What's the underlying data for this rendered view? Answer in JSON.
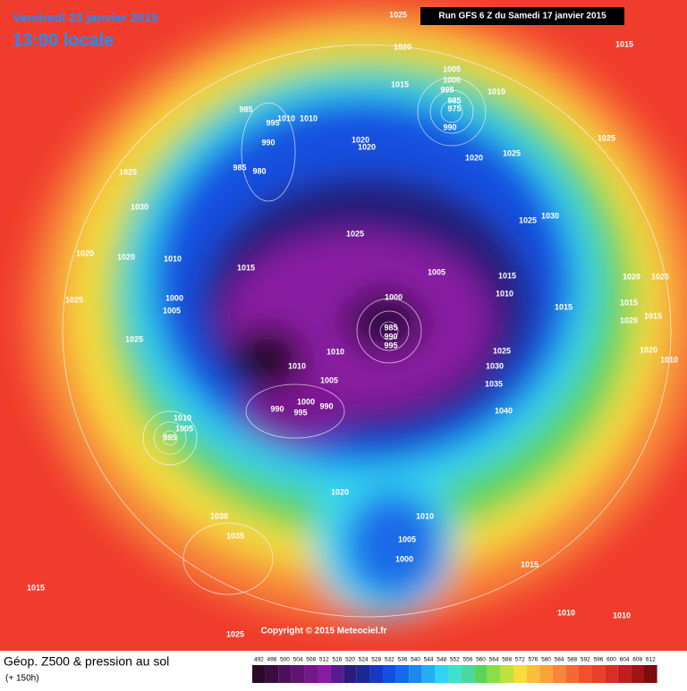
{
  "header": {
    "date": "Vendredi 23 janvier 2015",
    "time": "13:00 locale",
    "run": "Run GFS 6 Z du Samedi 17 janvier 2015"
  },
  "copyright": "Copyright © 2015 Meteociel.fr",
  "footer": {
    "title": "Géop. Z500 & pression au sol",
    "lead": "(+ 150h)"
  },
  "pressure_labels": [
    1025,
    1020,
    1015,
    1005,
    1000,
    995,
    1015,
    1010,
    985,
    975,
    990,
    985,
    995,
    1010,
    1010,
    990,
    985,
    980,
    1020,
    1020,
    1020,
    1025,
    1025,
    1025,
    1030,
    1030,
    1025,
    1025,
    1020,
    1020,
    1010,
    1015,
    1005,
    1015,
    1010,
    1020,
    1020,
    1000,
    1005,
    1025,
    1000,
    1015,
    1015,
    1020,
    1015,
    985,
    990,
    995,
    1025,
    1010,
    1025,
    1020,
    1010,
    1010,
    1030,
    1005,
    1035,
    1000,
    990,
    995,
    990,
    1040,
    1010,
    1005,
    985,
    1020,
    1010,
    1030,
    1005,
    1035,
    1000,
    1015,
    1015,
    1010,
    1010,
    1025
  ],
  "color_scale": [
    492,
    496,
    500,
    504,
    508,
    512,
    516,
    520,
    524,
    528,
    532,
    536,
    540,
    544,
    548,
    552,
    556,
    560,
    564,
    568,
    572,
    576,
    580,
    584,
    588,
    592,
    596,
    600,
    604,
    608,
    612
  ]
}
